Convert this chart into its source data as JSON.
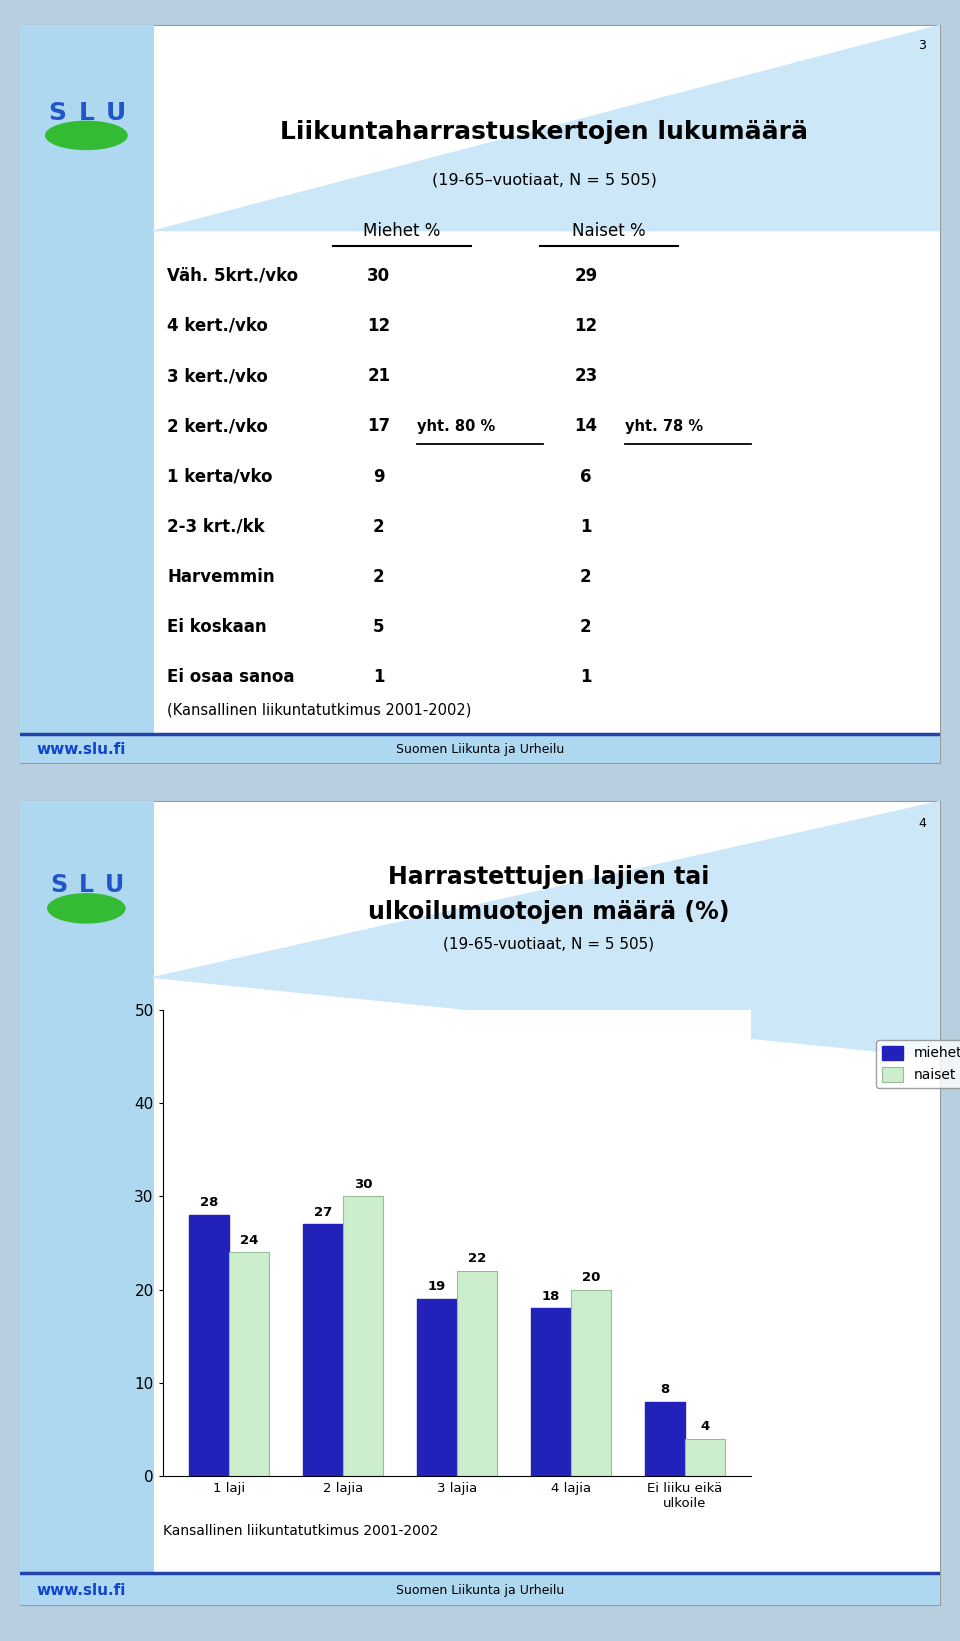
{
  "slide1": {
    "title": "Liikuntaharrastuskertojen lukumäärä",
    "subtitle": "(19-65–vuotiaat, N = 5 505)",
    "col1_header": "Miehet %",
    "col2_header": "Naiset %",
    "rows": [
      {
        "label": "Väh. 5krt./vko",
        "m": "30",
        "n": "29"
      },
      {
        "label": "4 kert./vko",
        "m": "12",
        "n": "12"
      },
      {
        "label": "3 kert./vko",
        "m": "21",
        "n": "23"
      },
      {
        "label": "2 kert./vko",
        "m": "17",
        "n": "14",
        "m_extra": "yht. 80 %",
        "n_extra": "yht. 78 %"
      },
      {
        "label": "1 kerta/vko",
        "m": "9",
        "n": "6"
      },
      {
        "label": "2-3 krt./kk",
        "m": "2",
        "n": "1"
      },
      {
        "label": "Harvemmin",
        "m": "2",
        "n": "2"
      },
      {
        "label": "Ei koskaan",
        "m": "5",
        "n": "2"
      },
      {
        "label": "Ei osaa sanoa",
        "m": "1",
        "n": "1"
      }
    ],
    "footer_note": "(Kansallinen liikuntatutkimus 2001-2002)",
    "footer_left": "www.slu.fi",
    "footer_right": "Suomen Liikunta ja Urheilu",
    "slide_num": "3"
  },
  "slide2": {
    "title_line1": "Harrastettujen lajien tai",
    "title_line2": "ulkoilumuotojen määrä (%)",
    "subtitle": "(19-65-vuotiaat, N = 5 505)",
    "categories": [
      "1 laji",
      "2 lajia",
      "3 lajia",
      "4 lajia",
      "Ei liiku eikä\nulkoile"
    ],
    "miehet": [
      28,
      27,
      19,
      18,
      8
    ],
    "naiset": [
      24,
      30,
      22,
      20,
      4
    ],
    "bar_color_miehet": "#2222bb",
    "bar_color_naiset": "#cceecc",
    "bar_edge_naiset": "#99bb99",
    "ylim": [
      0,
      50
    ],
    "yticks": [
      0,
      10,
      20,
      30,
      40,
      50
    ],
    "footer_note": "Kansallinen liikuntatutkimus 2001-2002",
    "footer_left": "www.slu.fi",
    "footer_right": "Suomen Liikunta ja Urheilu",
    "slide_num": "4",
    "legend_miehet": "miehet",
    "legend_naiset": "naiset"
  },
  "bg_color": "#b8cfe0",
  "sidebar_color": "#add8f0",
  "panel_color": "#ffffff",
  "footer_bg": "#aad0e8",
  "footer_text_color": "#1144cc"
}
